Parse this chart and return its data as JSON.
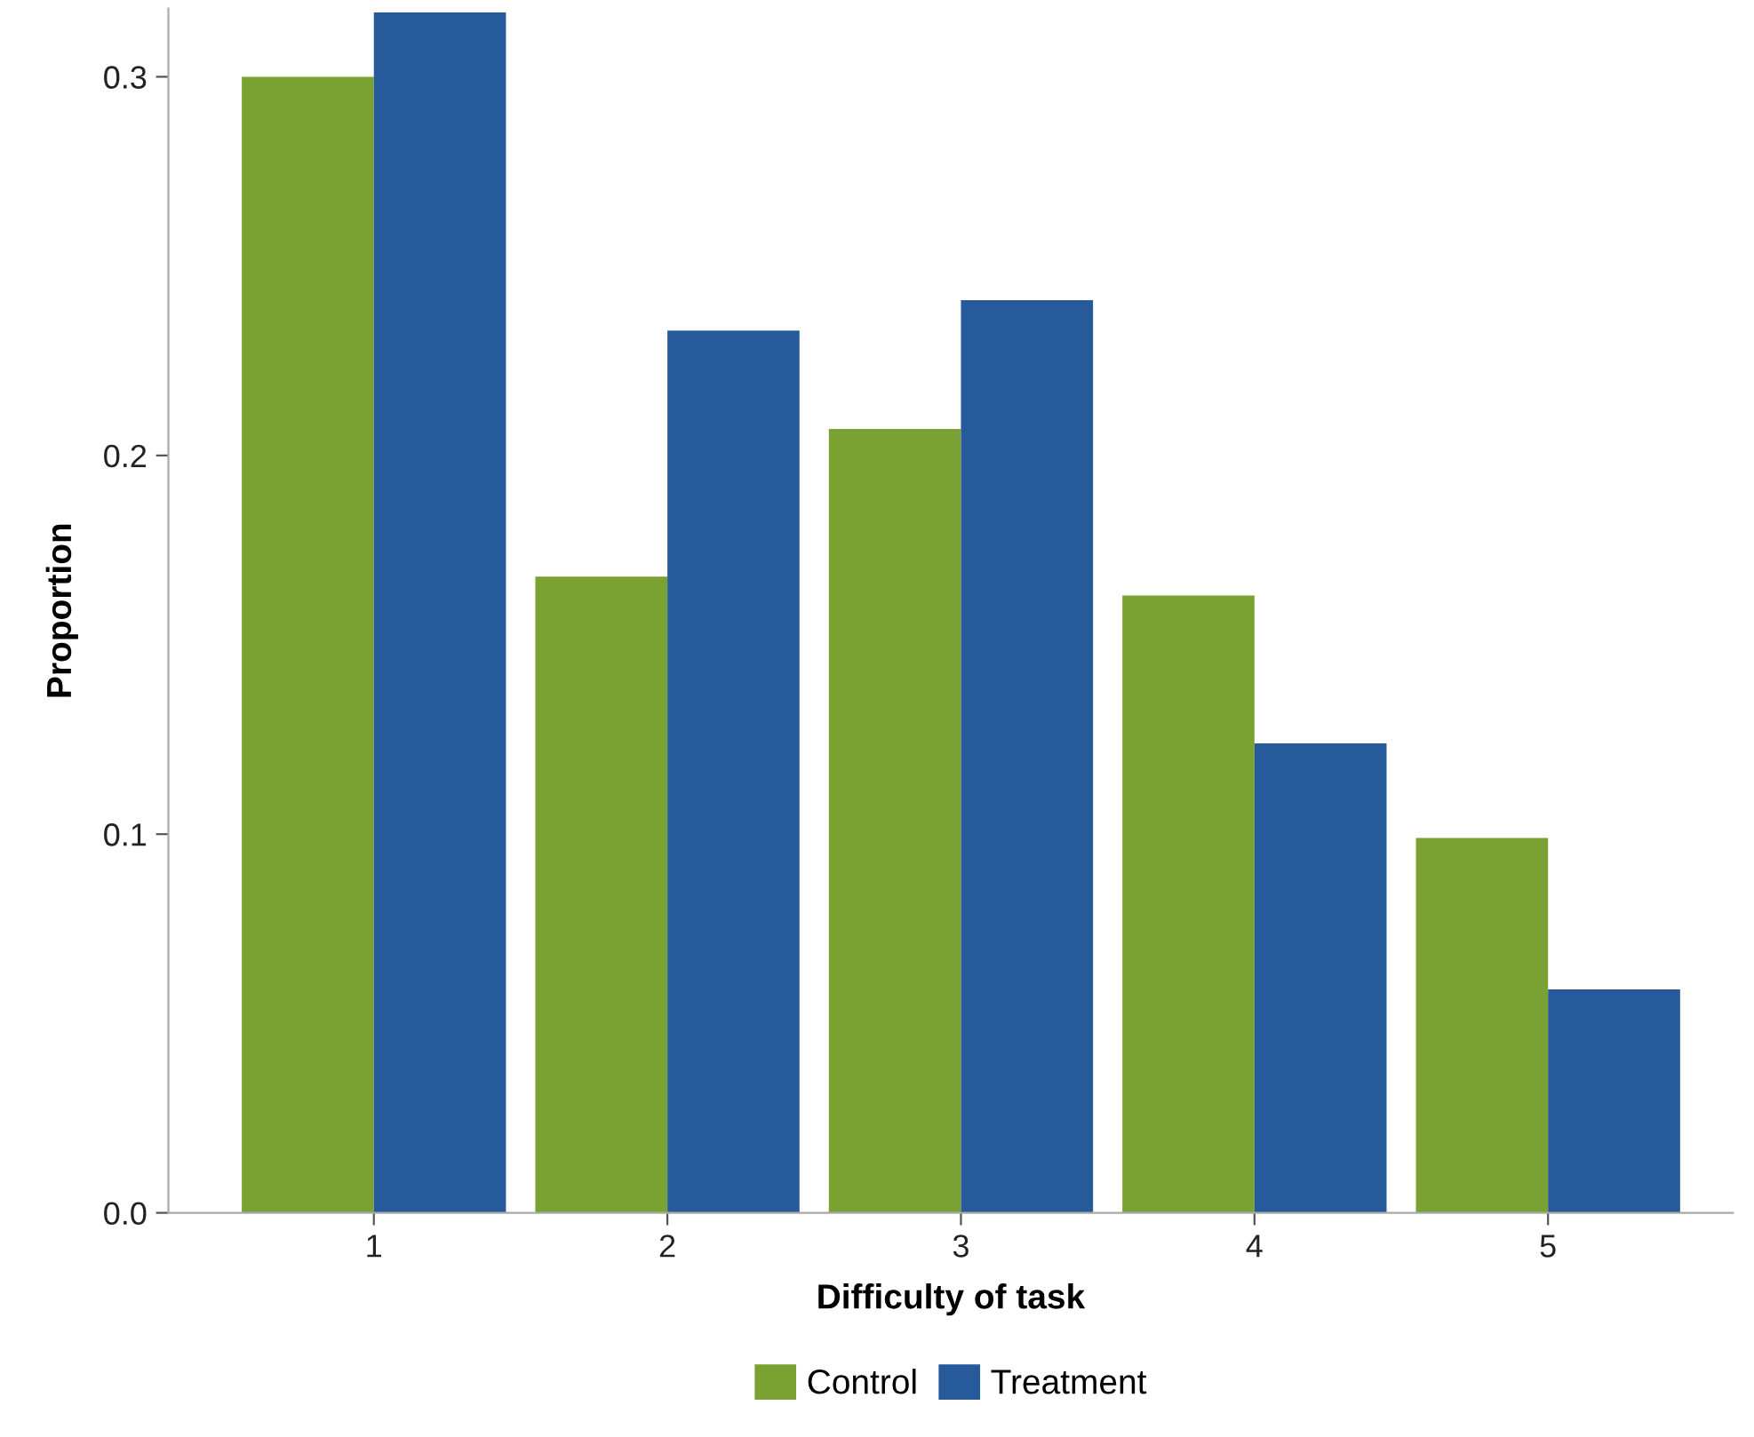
{
  "chart_data": {
    "type": "bar",
    "xlabel": "Difficulty of task",
    "ylabel": "Proportion",
    "categories": [
      "1",
      "2",
      "3",
      "4",
      "5"
    ],
    "series": [
      {
        "name": "Control",
        "color": "#7aa232",
        "values": [
          0.3,
          0.168,
          0.207,
          0.163,
          0.099
        ]
      },
      {
        "name": "Treatment",
        "color": "#275a9b",
        "values": [
          0.317,
          0.233,
          0.241,
          0.124,
          0.059
        ]
      }
    ],
    "ylim": [
      0,
      0.318
    ],
    "yticks": [
      {
        "value": 0,
        "label": "0.0"
      },
      0.1,
      0.2,
      0.3
    ],
    "grid": false,
    "legend": "bottom"
  }
}
